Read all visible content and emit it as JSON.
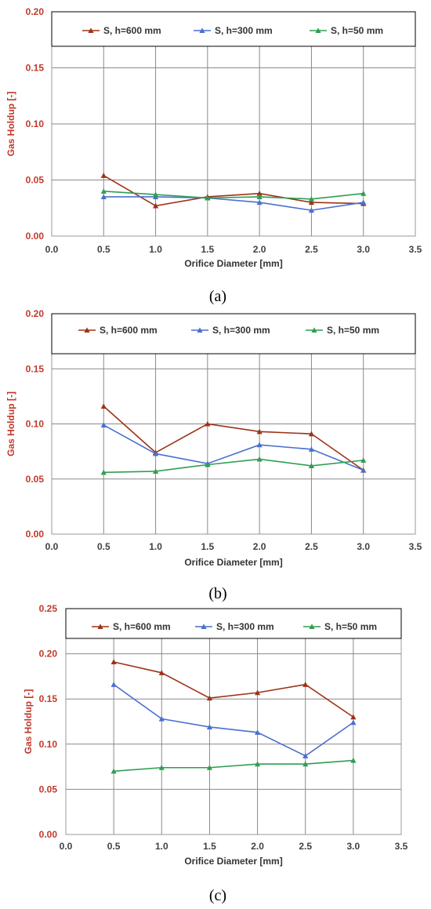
{
  "colors": {
    "series_600": "#9c3318",
    "series_300": "#4a6fcf",
    "series_50": "#2f9e52",
    "ylabel": "#c0392b",
    "grid": "#8a8a8a",
    "axis": "#999999"
  },
  "chart_data": [
    {
      "type": "line",
      "caption": "(a)",
      "xlabel": "Orifice Diameter [mm]",
      "ylabel": "Gas Holdup [-]",
      "xlim": [
        0.0,
        3.5
      ],
      "ylim": [
        0.0,
        0.2
      ],
      "xticks": [
        "0.0",
        "0.5",
        "1.0",
        "1.5",
        "2.0",
        "2.5",
        "3.0",
        "3.5"
      ],
      "yticks": [
        "0.00",
        "0.05",
        "0.10",
        "0.15",
        "0.20"
      ],
      "grid": true,
      "legend_position": "top",
      "x": [
        0.5,
        1.0,
        1.5,
        2.0,
        2.5,
        3.0
      ],
      "series": [
        {
          "name": "S, h=600 mm",
          "values": [
            0.054,
            0.027,
            0.035,
            0.038,
            0.03,
            0.029
          ]
        },
        {
          "name": "S, h=300 mm",
          "values": [
            0.035,
            0.035,
            0.034,
            0.03,
            0.023,
            0.03
          ]
        },
        {
          "name": "S, h=50 mm",
          "values": [
            0.04,
            0.037,
            0.034,
            0.035,
            0.033,
            0.038
          ]
        }
      ]
    },
    {
      "type": "line",
      "caption": "(b)",
      "xlabel": "Orifice Diameter [mm]",
      "ylabel": "Gas Holdup [-]",
      "xlim": [
        0.0,
        3.5
      ],
      "ylim": [
        0.0,
        0.2
      ],
      "xticks": [
        "0.0",
        "0.5",
        "1.0",
        "1.5",
        "2.0",
        "2.5",
        "3.0",
        "3.5"
      ],
      "yticks": [
        "0.00",
        "0.05",
        "0.10",
        "0.15",
        "0.20"
      ],
      "grid": true,
      "legend_position": "top",
      "x": [
        0.5,
        1.0,
        1.5,
        2.0,
        2.5,
        3.0
      ],
      "series": [
        {
          "name": "S, h=600 mm",
          "values": [
            0.116,
            0.074,
            0.1,
            0.093,
            0.091,
            0.058
          ]
        },
        {
          "name": "S, h=300 mm",
          "values": [
            0.099,
            0.073,
            0.064,
            0.081,
            0.077,
            0.058
          ]
        },
        {
          "name": "S, h=50 mm",
          "values": [
            0.056,
            0.057,
            0.063,
            0.068,
            0.062,
            0.067
          ]
        }
      ]
    },
    {
      "type": "line",
      "caption": "(c)",
      "xlabel": "Orifice Diameter [mm]",
      "ylabel": "Gas Holdup [-]",
      "xlim": [
        0.0,
        3.5
      ],
      "ylim": [
        0.0,
        0.25
      ],
      "xticks": [
        "0.0",
        "0.5",
        "1.0",
        "1.5",
        "2.0",
        "2.5",
        "3.0",
        "3.5"
      ],
      "yticks": [
        "0.00",
        "0.05",
        "0.10",
        "0.15",
        "0.20",
        "0.25"
      ],
      "grid": true,
      "legend_position": "top",
      "x": [
        0.5,
        1.0,
        1.5,
        2.0,
        2.5,
        3.0
      ],
      "series": [
        {
          "name": "S, h=600 mm",
          "values": [
            0.191,
            0.179,
            0.151,
            0.157,
            0.166,
            0.13
          ]
        },
        {
          "name": "S, h=300 mm",
          "values": [
            0.166,
            0.128,
            0.119,
            0.113,
            0.087,
            0.124
          ]
        },
        {
          "name": "S, h=50 mm",
          "values": [
            0.07,
            0.074,
            0.074,
            0.078,
            0.078,
            0.082
          ]
        }
      ]
    }
  ]
}
